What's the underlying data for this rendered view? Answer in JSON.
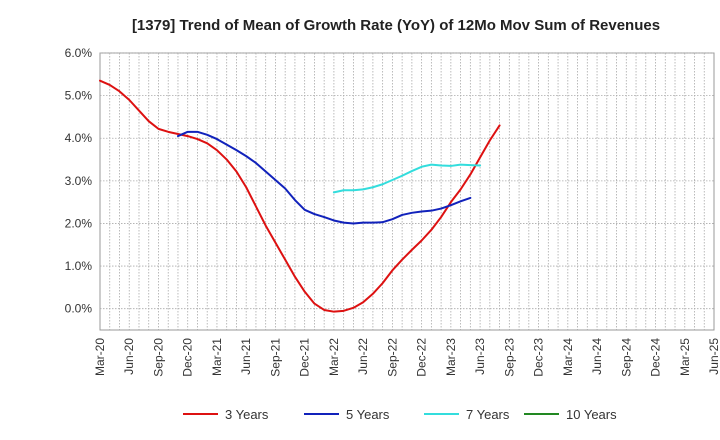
{
  "chart_data": {
    "type": "line",
    "title": "[1379]  Trend of Mean of Growth Rate (YoY) of 12Mo Mov Sum of Revenues",
    "xlabel": "",
    "ylabel": "",
    "ylim": [
      -0.5,
      6.0
    ],
    "yticks": [
      "0.0%",
      "1.0%",
      "2.0%",
      "3.0%",
      "4.0%",
      "5.0%",
      "6.0%"
    ],
    "ytick_values": [
      0,
      1,
      2,
      3,
      4,
      5,
      6
    ],
    "xticks": [
      "Mar-20",
      "Jun-20",
      "Sep-20",
      "Dec-20",
      "Mar-21",
      "Jun-21",
      "Sep-21",
      "Dec-21",
      "Mar-22",
      "Jun-22",
      "Sep-22",
      "Dec-22",
      "Mar-23",
      "Jun-23",
      "Sep-23",
      "Dec-23",
      "Mar-24",
      "Jun-24",
      "Sep-24",
      "Dec-24",
      "Mar-25",
      "Jun-25"
    ],
    "x_start": "Mar-20",
    "grid": true,
    "legend_position": "bottom",
    "series": [
      {
        "name": "3 Years",
        "color": "#dd1111",
        "start_index": 0,
        "values": [
          5.35,
          5.25,
          5.1,
          4.9,
          4.65,
          4.4,
          4.22,
          4.15,
          4.1,
          4.05,
          3.98,
          3.88,
          3.72,
          3.5,
          3.22,
          2.85,
          2.4,
          1.95,
          1.55,
          1.15,
          0.75,
          0.4,
          0.12,
          -0.03,
          -0.07,
          -0.05,
          0.02,
          0.15,
          0.35,
          0.6,
          0.9,
          1.15,
          1.38,
          1.6,
          1.85,
          2.15,
          2.5,
          2.8,
          3.15,
          3.55,
          3.95,
          4.3
        ]
      },
      {
        "name": "5 Years",
        "color": "#1122bb",
        "start_index": 8,
        "values": [
          4.05,
          4.15,
          4.15,
          4.08,
          3.98,
          3.85,
          3.72,
          3.58,
          3.42,
          3.22,
          3.02,
          2.82,
          2.55,
          2.32,
          2.22,
          2.15,
          2.07,
          2.02,
          2.0,
          2.02,
          2.02,
          2.03,
          2.1,
          2.2,
          2.25,
          2.28,
          2.3,
          2.35,
          2.43,
          2.52,
          2.6
        ]
      },
      {
        "name": "7 Years",
        "color": "#33dddd",
        "start_index": 24,
        "values": [
          2.73,
          2.78,
          2.78,
          2.8,
          2.85,
          2.92,
          3.02,
          3.12,
          3.23,
          3.33,
          3.38,
          3.36,
          3.35,
          3.38,
          3.37,
          3.36
        ]
      },
      {
        "name": "10 Years",
        "color": "#228822",
        "start_index": 0,
        "values": []
      }
    ]
  }
}
